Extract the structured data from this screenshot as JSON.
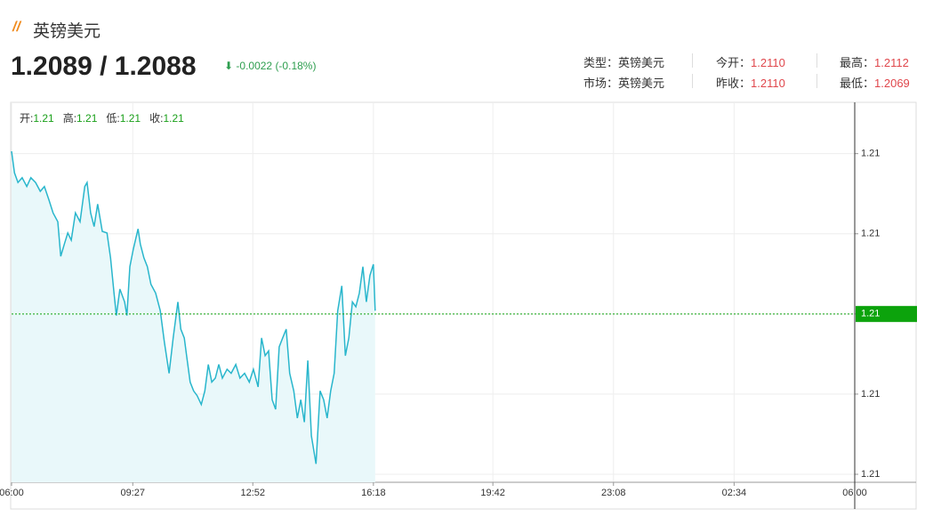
{
  "header": {
    "title": "英镑美元",
    "price": "1.2089 / 1.2088",
    "change": "-0.0022 (-0.18%)"
  },
  "info": [
    {
      "label": "类型：",
      "value": "英镑美元"
    },
    {
      "label": "今开：",
      "value": "1.2110"
    },
    {
      "label": "最高：",
      "value": "1.2112"
    },
    {
      "label": "市场：",
      "value": "英镑美元"
    },
    {
      "label": "昨收：",
      "value": "1.2110"
    },
    {
      "label": "最低：",
      "value": "1.2069"
    }
  ],
  "ohlc": [
    {
      "label": "开:",
      "value": "1.21"
    },
    {
      "label": "高:",
      "value": "1.21"
    },
    {
      "label": "低:",
      "value": "1.21"
    },
    {
      "label": "收:",
      "value": "1.21"
    }
  ],
  "chart_data": {
    "type": "line",
    "color": "#29b6cc",
    "area_color": "#e9f8fa",
    "grid": true,
    "x": [
      0,
      5,
      11,
      18,
      26,
      33,
      41,
      49,
      56,
      64,
      71,
      79,
      84,
      90,
      96,
      102,
      109,
      117,
      125,
      129,
      135,
      141,
      147,
      155,
      163,
      169,
      175,
      179,
      185,
      193,
      197,
      202,
      208,
      216,
      220,
      226,
      232,
      238,
      246,
      254,
      261,
      269,
      276,
      284,
      289,
      295,
      299,
      305,
      311,
      317,
      324,
      330,
      336,
      342,
      348,
      354,
      360,
      368,
      375,
      383,
      390,
      398,
      406,
      413,
      421,
      427,
      433,
      439,
      445,
      451,
      457,
      463,
      469,
      475,
      482,
      488,
      494,
      500,
      506,
      512,
      520,
      527,
      533,
      539,
      545,
      551,
      557,
      564,
      570,
      576,
      582,
      588,
      594,
      600,
      606,
      612,
      618,
      621
    ],
    "values": [
      1.21103,
      1.21076,
      1.21064,
      1.2107,
      1.21059,
      1.2107,
      1.21064,
      1.21053,
      1.21059,
      1.21042,
      1.21026,
      1.21015,
      1.20972,
      1.20987,
      1.21001,
      1.20992,
      1.21026,
      1.21015,
      1.21059,
      1.21064,
      1.21026,
      1.21009,
      1.21037,
      1.21003,
      1.21001,
      1.2097,
      1.20926,
      1.20898,
      1.20931,
      1.20915,
      1.20898,
      1.20959,
      1.20981,
      1.21006,
      1.20987,
      1.2097,
      1.20959,
      1.20937,
      1.20926,
      1.20904,
      1.20865,
      1.20826,
      1.2087,
      1.20915,
      1.20881,
      1.2087,
      1.20848,
      1.20815,
      1.20804,
      1.20798,
      1.20787,
      1.20804,
      1.20837,
      1.20815,
      1.2082,
      1.20837,
      1.2082,
      1.20831,
      1.20826,
      1.20837,
      1.2082,
      1.20826,
      1.20815,
      1.20831,
      1.20809,
      1.2087,
      1.20848,
      1.20854,
      1.20793,
      1.20781,
      1.20859,
      1.2087,
      1.20881,
      1.20826,
      1.20804,
      1.2077,
      1.20793,
      1.20765,
      1.20842,
      1.20748,
      1.20713,
      1.20804,
      1.20793,
      1.2077,
      1.20804,
      1.20826,
      1.20904,
      1.20935,
      1.20848,
      1.2087,
      1.20915,
      1.20909,
      1.20926,
      1.20959,
      1.20915,
      1.20948,
      1.20962,
      1.20904
    ],
    "xlim": [
      0,
      1440
    ],
    "xticks": [
      {
        "value": 0,
        "label": "06:00"
      },
      {
        "value": 207,
        "label": "09:27"
      },
      {
        "value": 412,
        "label": "12:52"
      },
      {
        "value": 618,
        "label": "16:18"
      },
      {
        "value": 822,
        "label": "19:42"
      },
      {
        "value": 1028,
        "label": "23:08"
      },
      {
        "value": 1234,
        "label": "02:34"
      },
      {
        "value": 1440,
        "label": "06:00"
      }
    ],
    "ylim": [
      1.2069,
      1.21164
    ],
    "yticks": [
      {
        "value": 1.211,
        "label": "1.21"
      },
      {
        "value": 1.21,
        "label": "1.21"
      },
      {
        "value": 1.209,
        "label": "1.21"
      },
      {
        "value": 1.208,
        "label": "1.21"
      },
      {
        "value": 1.207,
        "label": "1.21"
      }
    ],
    "last_marker": {
      "value": 1.209,
      "label": "1.21",
      "color": "#0ca30c"
    }
  }
}
